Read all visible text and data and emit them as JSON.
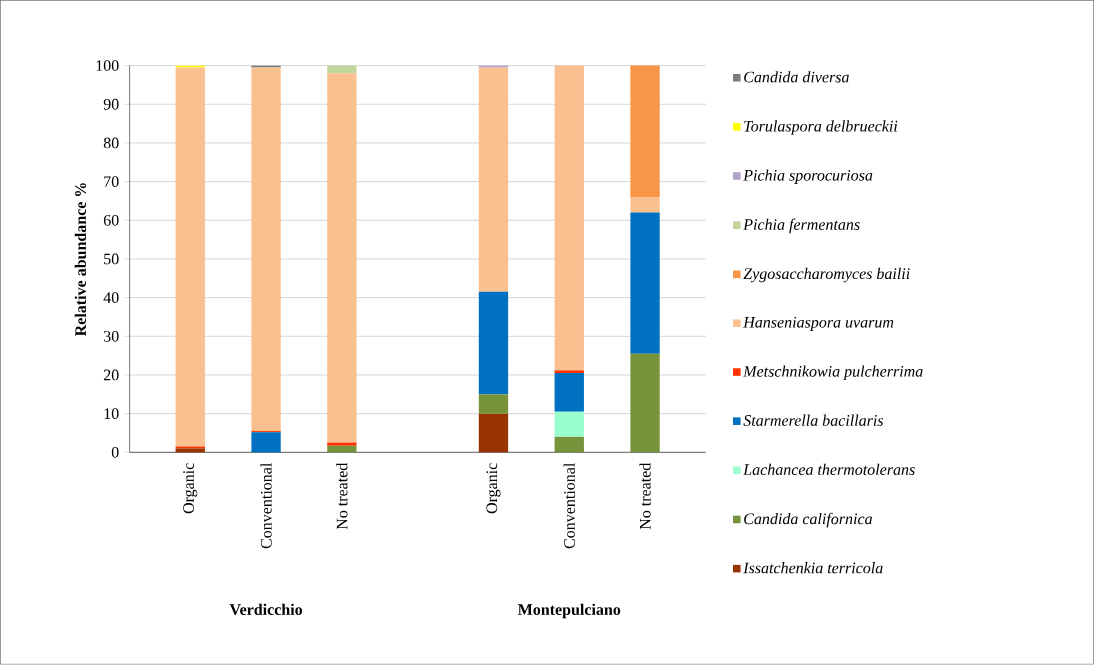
{
  "chart_data": {
    "type": "bar",
    "stacked": true,
    "ylabel": "Relative abundance %",
    "categories": [
      "Organic",
      "Conventional",
      "No treated",
      null,
      "Organic",
      "Conventional",
      "No treated"
    ],
    "annotations": [
      "Verdicchio",
      "Montepulciano"
    ],
    "series": [
      {
        "name": "*Issatchenkia terricola*",
        "color": "#993300",
        "values": [
          1,
          0,
          0,
          null,
          10,
          0,
          0
        ]
      },
      {
        "name": "*Candida californica*",
        "color": "#77933c",
        "values": [
          0,
          0,
          1.7,
          null,
          5,
          4,
          25.5
        ]
      },
      {
        "name": "*Lachancea thermotolerans*",
        "color": "#99ffcc",
        "values": [
          0,
          0,
          0,
          null,
          0,
          6.5,
          0
        ]
      },
      {
        "name": "*Starmerella bacillaris*",
        "color": "#0070c0",
        "values": [
          0,
          5.2,
          0,
          null,
          26.5,
          10,
          36.5
        ]
      },
      {
        "name": "*Metschnikowia pulcherrima*",
        "color": "#ff3300",
        "values": [
          0.5,
          0.3,
          0.8,
          null,
          0,
          0.7,
          0
        ]
      },
      {
        "name": "*Hanseniaspora uvarum*",
        "color": "#fac090",
        "values": [
          98,
          94,
          95.5,
          null,
          58,
          78.8,
          4
        ]
      },
      {
        "name": "*Zygosaccharomyces bailii*",
        "color": "#f79646",
        "values": [
          0,
          0,
          0,
          null,
          0,
          0,
          34
        ]
      },
      {
        "name": "*Pichia fermentans*",
        "color": "#c3d69b",
        "values": [
          0,
          0,
          2,
          null,
          0,
          0,
          0
        ]
      },
      {
        "name": "*Pichia sporocuriosa*",
        "color": "#b3a2c7",
        "values": [
          0,
          0,
          0,
          null,
          0.5,
          0,
          0
        ]
      },
      {
        "name": "*Torulaspora delbrueckii*",
        "color": "#ffff00",
        "values": [
          0.5,
          0,
          0,
          null,
          0,
          0,
          0
        ]
      },
      {
        "name": "*Candida diversa*",
        "color": "#7f7f7f",
        "values": [
          0,
          0.5,
          0,
          null,
          0,
          0,
          0
        ]
      }
    ],
    "ylim": [
      0,
      100
    ],
    "yticks": [
      0,
      10,
      20,
      30,
      40,
      50,
      60,
      70,
      80,
      90,
      100
    ],
    "grid": "y",
    "legend": "right"
  }
}
